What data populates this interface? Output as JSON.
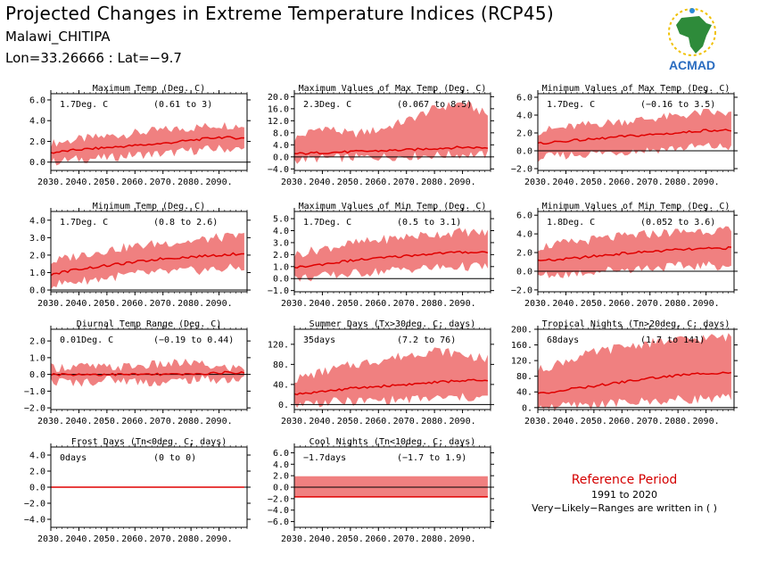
{
  "header": {
    "title": "Projected Changes in Extreme Temperature Indices (RCP45)",
    "station": "Malawi_CHITIPA",
    "coords": "Lon=33.26666 : Lat=−9.7"
  },
  "logo": {
    "text": "ACMAD",
    "icon": "africa-map-logo-icon"
  },
  "reference": {
    "title": "Reference Period",
    "years": "1991 to 2020",
    "note": "Very−Likely−Ranges are written in ( )"
  },
  "colors": {
    "band": "#f08080",
    "line": "#e00000",
    "frame": "#000000",
    "ref_title": "#d40000"
  },
  "chart_data": [
    {
      "type": "area",
      "title": "Maximum Temp (Deg. C)",
      "mean_label": "1.7Deg. C",
      "range_label": "(0.61 to 3)",
      "xlim": [
        2030,
        2100
      ],
      "ylim": [
        -0.8,
        6.6
      ],
      "yticks": [
        0,
        2,
        4,
        6
      ],
      "ytick_labels": [
        "0.0",
        "2.0",
        "4.0",
        "6.0"
      ],
      "x_ticks": [
        2030,
        2040,
        2050,
        2060,
        2070,
        2080,
        2090
      ],
      "x_tick_labels": [
        "2030.",
        "2040.",
        "2050.",
        "2060.",
        "2070.",
        "2080.",
        "2090."
      ],
      "series": [
        {
          "x": [
            2030,
            2040,
            2050,
            2060,
            2070,
            2080,
            2090,
            2099
          ],
          "mean": [
            0.9,
            1.2,
            1.4,
            1.6,
            1.8,
            2.1,
            2.4,
            2.3
          ],
          "low": [
            0.0,
            0.3,
            0.4,
            0.7,
            0.8,
            1.1,
            1.3,
            1.2
          ],
          "high": [
            1.8,
            2.2,
            2.5,
            2.8,
            3.1,
            3.3,
            3.6,
            3.5
          ]
        }
      ]
    },
    {
      "type": "area",
      "title": "Maximum Values of Max Temp (Deg. C)",
      "mean_label": "2.3Deg. C",
      "range_label": "(0.067 to 8.5)",
      "xlim": [
        2030,
        2100
      ],
      "ylim": [
        -4.5,
        21
      ],
      "yticks": [
        -4,
        0,
        4,
        8,
        12,
        16,
        20
      ],
      "ytick_labels": [
        "−4.0",
        "0.0",
        "4.0",
        "8.0",
        "12.0",
        "16.0",
        "20.0"
      ],
      "x_ticks": [
        2030,
        2040,
        2050,
        2060,
        2070,
        2080,
        2090
      ],
      "x_tick_labels": [
        "2030.",
        "2040.",
        "2050.",
        "2060.",
        "2070.",
        "2080.",
        "2090."
      ],
      "series": [
        {
          "x": [
            2030,
            2040,
            2050,
            2060,
            2070,
            2080,
            2090,
            2099
          ],
          "mean": [
            1.0,
            1.4,
            1.7,
            2.0,
            2.3,
            2.8,
            3.2,
            3.0
          ],
          "low": [
            -1.0,
            -0.5,
            -0.3,
            0.0,
            0.2,
            0.5,
            0.8,
            0.6
          ],
          "high": [
            6.0,
            10.0,
            7.5,
            9.0,
            12.0,
            16.0,
            18.0,
            14.0
          ]
        }
      ]
    },
    {
      "type": "area",
      "title": "Minimum Values of Max Temp (Deg. C)",
      "mean_label": "1.7Deg. C",
      "range_label": "(−0.16 to 3.5)",
      "xlim": [
        2030,
        2100
      ],
      "ylim": [
        -2.2,
        6.4
      ],
      "yticks": [
        -2,
        0,
        2,
        4,
        6
      ],
      "ytick_labels": [
        "−2.0",
        "0.0",
        "2.0",
        "4.0",
        "6.0"
      ],
      "x_ticks": [
        2030,
        2040,
        2050,
        2060,
        2070,
        2080,
        2090
      ],
      "x_tick_labels": [
        "2030.",
        "2040.",
        "2050.",
        "2060.",
        "2070.",
        "2080.",
        "2090."
      ],
      "series": [
        {
          "x": [
            2030,
            2040,
            2050,
            2060,
            2070,
            2080,
            2090,
            2099
          ],
          "mean": [
            0.8,
            1.1,
            1.3,
            1.6,
            1.8,
            2.0,
            2.3,
            2.3
          ],
          "low": [
            -0.8,
            -0.5,
            -0.3,
            -0.1,
            0.1,
            0.3,
            0.5,
            0.4
          ],
          "high": [
            2.2,
            2.6,
            3.0,
            3.3,
            3.6,
            3.9,
            4.3,
            4.1
          ]
        }
      ]
    },
    {
      "type": "area",
      "title": "Minimum Temp (Deg. C)",
      "mean_label": "1.7Deg. C",
      "range_label": "(0.8 to 2.6)",
      "xlim": [
        2030,
        2100
      ],
      "ylim": [
        -0.1,
        4.5
      ],
      "yticks": [
        0,
        1,
        2,
        3,
        4
      ],
      "ytick_labels": [
        "0.0",
        "1.0",
        "2.0",
        "3.0",
        "4.0"
      ],
      "x_ticks": [
        2030,
        2040,
        2050,
        2060,
        2070,
        2080,
        2090
      ],
      "x_tick_labels": [
        "2030.",
        "2040.",
        "2050.",
        "2060.",
        "2070.",
        "2080.",
        "2090."
      ],
      "series": [
        {
          "x": [
            2030,
            2040,
            2050,
            2060,
            2070,
            2080,
            2090,
            2099
          ],
          "mean": [
            0.9,
            1.2,
            1.4,
            1.6,
            1.8,
            1.9,
            2.0,
            2.1
          ],
          "low": [
            0.3,
            0.5,
            0.7,
            0.9,
            1.0,
            1.1,
            1.2,
            1.3
          ],
          "high": [
            1.6,
            2.0,
            2.3,
            2.5,
            2.7,
            2.8,
            3.0,
            3.1
          ]
        }
      ]
    },
    {
      "type": "area",
      "title": "Maximum Values of Min Temp (Deg. C)",
      "mean_label": "1.7Deg. C",
      "range_label": "(0.5 to 3.1)",
      "xlim": [
        2030,
        2100
      ],
      "ylim": [
        -1.1,
        5.6
      ],
      "yticks": [
        -1,
        0,
        1,
        2,
        3,
        4,
        5
      ],
      "ytick_labels": [
        "−1.0",
        "0.0",
        "1.0",
        "2.0",
        "3.0",
        "4.0",
        "5.0"
      ],
      "x_ticks": [
        2030,
        2040,
        2050,
        2060,
        2070,
        2080,
        2090
      ],
      "x_tick_labels": [
        "2030.",
        "2040.",
        "2050.",
        "2060.",
        "2070.",
        "2080.",
        "2090."
      ],
      "series": [
        {
          "x": [
            2030,
            2040,
            2050,
            2060,
            2070,
            2080,
            2090,
            2099
          ],
          "mean": [
            0.9,
            1.2,
            1.5,
            1.7,
            1.9,
            2.1,
            2.2,
            2.2
          ],
          "low": [
            0.0,
            0.2,
            0.4,
            0.6,
            0.8,
            0.9,
            1.0,
            1.0
          ],
          "high": [
            2.0,
            2.5,
            2.9,
            3.2,
            3.5,
            3.7,
            3.9,
            3.8
          ]
        }
      ]
    },
    {
      "type": "area",
      "title": "Minimum Values of Min Temp (Deg. C)",
      "mean_label": "1.8Deg. C",
      "range_label": "(0.052 to 3.6)",
      "xlim": [
        2030,
        2100
      ],
      "ylim": [
        -2.2,
        6.4
      ],
      "yticks": [
        -2,
        0,
        2,
        4,
        6
      ],
      "ytick_labels": [
        "−2.0",
        "0.0",
        "2.0",
        "4.0",
        "6.0"
      ],
      "x_ticks": [
        2030,
        2040,
        2050,
        2060,
        2070,
        2080,
        2090
      ],
      "x_tick_labels": [
        "2030.",
        "2040.",
        "2050.",
        "2060.",
        "2070.",
        "2080.",
        "2090."
      ],
      "series": [
        {
          "x": [
            2030,
            2040,
            2050,
            2060,
            2070,
            2080,
            2090,
            2099
          ],
          "mean": [
            1.1,
            1.3,
            1.6,
            1.9,
            2.1,
            2.3,
            2.4,
            2.5
          ],
          "low": [
            -0.5,
            -0.3,
            0.0,
            0.2,
            0.4,
            0.5,
            0.6,
            0.6
          ],
          "high": [
            2.6,
            3.0,
            3.4,
            3.7,
            4.0,
            4.2,
            4.4,
            4.3
          ]
        }
      ]
    },
    {
      "type": "area",
      "title": "Diurnal Temp Range (Deg. C)",
      "mean_label": "0.01Deg. C",
      "range_label": "(−0.19 to 0.44)",
      "xlim": [
        2030,
        2100
      ],
      "ylim": [
        -2.1,
        2.7
      ],
      "yticks": [
        -2,
        -1,
        0,
        1,
        2
      ],
      "ytick_labels": [
        "−2.0",
        "−1.0",
        "0.0",
        "1.0",
        "2.0"
      ],
      "x_ticks": [
        2030,
        2040,
        2050,
        2060,
        2070,
        2080,
        2090
      ],
      "x_tick_labels": [
        "2030.",
        "2040.",
        "2050.",
        "2060.",
        "2070.",
        "2080.",
        "2090."
      ],
      "series": [
        {
          "x": [
            2030,
            2040,
            2050,
            2060,
            2070,
            2080,
            2090,
            2099
          ],
          "mean": [
            0.0,
            0.0,
            0.0,
            0.0,
            0.0,
            0.0,
            0.1,
            0.1
          ],
          "low": [
            -0.4,
            -0.5,
            -0.3,
            -0.4,
            -0.5,
            -0.3,
            -0.3,
            -0.3
          ],
          "high": [
            0.4,
            0.5,
            0.4,
            0.5,
            0.6,
            0.7,
            0.4,
            0.4
          ]
        }
      ]
    },
    {
      "type": "area",
      "title": "Summer Days (Tx>30deg. C; days)",
      "mean_label": "35days",
      "range_label": "(7.2 to 76)",
      "xlim": [
        2030,
        2100
      ],
      "ylim": [
        -10,
        150
      ],
      "yticks": [
        0,
        40,
        80,
        120
      ],
      "ytick_labels": [
        "0.",
        "40.",
        "80.",
        "120."
      ],
      "x_ticks": [
        2030,
        2040,
        2050,
        2060,
        2070,
        2080,
        2090
      ],
      "x_tick_labels": [
        "2030.",
        "2040.",
        "2050.",
        "2060.",
        "2070.",
        "2080.",
        "2090."
      ],
      "series": [
        {
          "x": [
            2030,
            2040,
            2050,
            2060,
            2070,
            2080,
            2090,
            2099
          ],
          "mean": [
            20,
            26,
            32,
            36,
            40,
            44,
            48,
            47
          ],
          "low": [
            2,
            4,
            6,
            8,
            10,
            12,
            14,
            13
          ],
          "high": [
            50,
            65,
            78,
            88,
            98,
            108,
            100,
            90
          ]
        }
      ]
    },
    {
      "type": "area",
      "title": "Tropical Nights (Tn>20deg. C; days)",
      "mean_label": "68days",
      "range_label": "(1.7 to 141)",
      "xlim": [
        2030,
        2100
      ],
      "ylim": [
        -5,
        200
      ],
      "yticks": [
        0,
        40,
        80,
        120,
        160,
        200
      ],
      "ytick_labels": [
        "0.",
        "40.",
        "80.",
        "120.",
        "160.",
        "200."
      ],
      "x_ticks": [
        2030,
        2040,
        2050,
        2060,
        2070,
        2080,
        2090
      ],
      "x_tick_labels": [
        "2030.",
        "2040.",
        "2050.",
        "2060.",
        "2070.",
        "2080.",
        "2090."
      ],
      "series": [
        {
          "x": [
            2030,
            2040,
            2050,
            2060,
            2070,
            2080,
            2090,
            2099
          ],
          "mean": [
            35,
            45,
            55,
            65,
            75,
            82,
            88,
            90
          ],
          "low": [
            2,
            4,
            8,
            12,
            16,
            20,
            24,
            24
          ],
          "high": [
            95,
            120,
            140,
            155,
            165,
            172,
            178,
            180
          ]
        }
      ]
    },
    {
      "type": "area",
      "title": "Frost Days (Tn<0deg. C; days)",
      "mean_label": "0days",
      "range_label": "(0 to 0)",
      "xlim": [
        2030,
        2100
      ],
      "ylim": [
        -5,
        5
      ],
      "yticks": [
        -4,
        -2,
        0,
        2,
        4
      ],
      "ytick_labels": [
        "−4.0",
        "−2.0",
        "0.0",
        "2.0",
        "4.0"
      ],
      "x_ticks": [
        2030,
        2040,
        2050,
        2060,
        2070,
        2080,
        2090
      ],
      "x_tick_labels": [
        "2030.",
        "2040.",
        "2050.",
        "2060.",
        "2070.",
        "2080.",
        "2090."
      ],
      "series": [
        {
          "x": [
            2030,
            2099
          ],
          "mean": [
            0,
            0
          ],
          "low": [
            0,
            0
          ],
          "high": [
            0,
            0
          ]
        }
      ]
    },
    {
      "type": "area",
      "title": "Cool Nights (Tn<10deg. C; days)",
      "mean_label": "−1.7days",
      "range_label": "(−1.7 to 1.9)",
      "xlim": [
        2030,
        2100
      ],
      "ylim": [
        -7,
        7
      ],
      "yticks": [
        -6,
        -4,
        -2,
        0,
        2,
        4,
        6
      ],
      "ytick_labels": [
        "−6.0",
        "−4.0",
        "−2.0",
        "0.0",
        "2.0",
        "4.0",
        "6.0"
      ],
      "x_ticks": [
        2030,
        2040,
        2050,
        2060,
        2070,
        2080,
        2090
      ],
      "x_tick_labels": [
        "2030.",
        "2040.",
        "2050.",
        "2060.",
        "2070.",
        "2080.",
        "2090."
      ],
      "series": [
        {
          "x": [
            2030,
            2099
          ],
          "mean": [
            -1.7,
            -1.7
          ],
          "low": [
            -1.7,
            -1.7
          ],
          "high": [
            1.9,
            1.9
          ]
        }
      ]
    }
  ]
}
